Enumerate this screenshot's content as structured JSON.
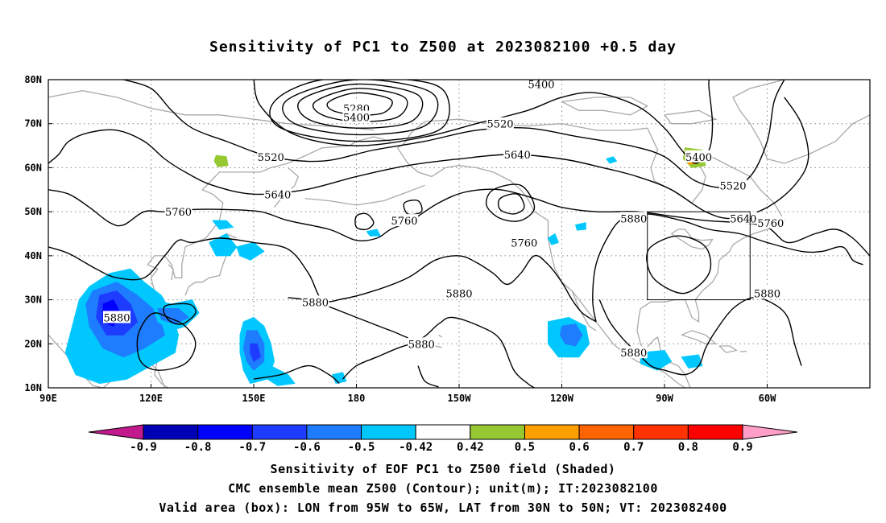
{
  "title": "Sensitivity of PC1 to Z500 at 2023082100 +0.5 day",
  "axes": {
    "lon_labels": [
      "90E",
      "120E",
      "150E",
      "180",
      "150W",
      "120W",
      "90W",
      "60W"
    ],
    "lat_labels": [
      "80N",
      "70N",
      "60N",
      "50N",
      "40N",
      "30N",
      "20N",
      "10N"
    ]
  },
  "contour_labels": [
    {
      "text": "5280",
      "lon": 180,
      "lat": 73.5
    },
    {
      "text": "5400",
      "lon": 180,
      "lat": 71.5
    },
    {
      "text": "5400",
      "lon": 234,
      "lat": 79
    },
    {
      "text": "5400",
      "lon": 280,
      "lat": 62.5
    },
    {
      "text": "5520",
      "lon": 155,
      "lat": 62.5
    },
    {
      "text": "5520",
      "lon": 222,
      "lat": 70
    },
    {
      "text": "5520",
      "lon": 290,
      "lat": 56
    },
    {
      "text": "5640",
      "lon": 157,
      "lat": 54
    },
    {
      "text": "5640",
      "lon": 227,
      "lat": 63
    },
    {
      "text": "5640",
      "lon": 293,
      "lat": 48.5
    },
    {
      "text": "5760",
      "lon": 128,
      "lat": 50
    },
    {
      "text": "5760",
      "lon": 194,
      "lat": 48
    },
    {
      "text": "5760",
      "lon": 229,
      "lat": 43
    },
    {
      "text": "5760",
      "lon": 301,
      "lat": 47.5
    },
    {
      "text": "5880",
      "lon": 110,
      "lat": 26
    },
    {
      "text": "5880",
      "lon": 168,
      "lat": 29.5
    },
    {
      "text": "5880",
      "lon": 210,
      "lat": 31.5
    },
    {
      "text": "5880",
      "lon": 199,
      "lat": 20
    },
    {
      "text": "5880",
      "lon": 261,
      "lat": 48.5
    },
    {
      "text": "5880",
      "lon": 300,
      "lat": 31.5
    },
    {
      "text": "5880",
      "lon": 261,
      "lat": 18
    }
  ],
  "valid_box": {
    "lon_min": 265,
    "lon_max": 295,
    "lat_min": 30,
    "lat_max": 50
  },
  "colorbar": {
    "ticks": [
      "-0.9",
      "-0.8",
      "-0.7",
      "-0.6",
      "-0.5",
      "-0.42",
      "0.42",
      "0.5",
      "0.6",
      "0.7",
      "0.8",
      "0.9"
    ],
    "colors": [
      "#c21a8c",
      "#0000b4",
      "#0000ff",
      "#1e3cff",
      "#1e7cff",
      "#00c8ff",
      "#ffffff",
      "#96c832",
      "#ffa000",
      "#ff6400",
      "#ff3200",
      "#ff0000",
      "#ff9ec8"
    ]
  },
  "caption": {
    "line1": "Sensitivity of EOF PC1 to Z500 field (Shaded)",
    "line2": "CMC ensemble mean Z500 (Contour); unit(m); IT:2023082100",
    "line3": "Valid area (box): LON from 95W to 65W, LAT from 30N to 50N; VT: 2023082400"
  }
}
